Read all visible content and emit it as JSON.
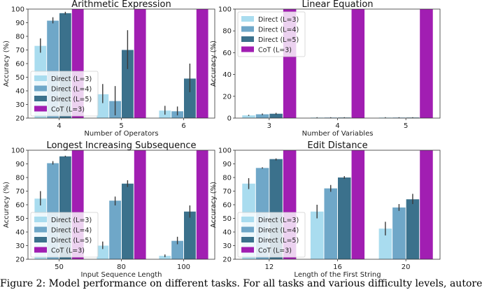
{
  "colors": {
    "L3": "#a9dcef",
    "L4": "#6fa7c8",
    "L5": "#3b718c",
    "CoT": "#a11eb2",
    "err": "#3a3a3a"
  },
  "caption": "Figure 2: Model performance on different tasks. For all tasks and various difficulty levels, autore",
  "chart_data": [
    {
      "type": "bar",
      "title": "Arithmetic Expression",
      "xlabel": "Number of Operators",
      "ylabel": "Accuracy (%)",
      "ylim": [
        20,
        100
      ],
      "yticks": [
        "20",
        "30",
        "40",
        "50",
        "60",
        "70",
        "80",
        "90",
        "100"
      ],
      "categories": [
        "4",
        "5",
        "6"
      ],
      "legend": "lower-left",
      "series": [
        {
          "name": "Direct (L=3)",
          "key": "L3",
          "values": [
            73,
            37.5,
            25.5
          ],
          "err": [
            [
              68,
              78.5
            ],
            [
              31,
              45
            ],
            [
              22.5,
              29
            ]
          ]
        },
        {
          "name": "Direct (L=4)",
          "key": "L4",
          "values": [
            91.5,
            32.5,
            25
          ],
          "err": [
            [
              89.5,
              94
            ],
            [
              22,
              43.5
            ],
            [
              22,
              28.5
            ]
          ]
        },
        {
          "name": "Direct (L=5)",
          "key": "L5",
          "values": [
            97,
            70,
            49
          ],
          "err": [
            [
              96,
              98
            ],
            [
              56,
              84.5
            ],
            [
              39,
              60
            ]
          ]
        },
        {
          "name": "CoT   (L=3)",
          "key": "CoT",
          "values": [
            100,
            100,
            100
          ],
          "err": null
        }
      ]
    },
    {
      "type": "bar",
      "title": "Linear Equation",
      "xlabel": "Number of Variables",
      "ylabel": "Accuracy (%)",
      "ylim": [
        0,
        100
      ],
      "yticks": [
        "0",
        "20",
        "40",
        "60",
        "80",
        "100"
      ],
      "categories": [
        "3",
        "4",
        "5"
      ],
      "legend": "upper-left",
      "series": [
        {
          "name": "Direct (L=3)",
          "key": "L3",
          "values": [
            2.5,
            0.5,
            0.5
          ],
          "err": [
            [
              2,
              3
            ],
            [
              0.2,
              0.8
            ],
            [
              0.2,
              0.8
            ]
          ]
        },
        {
          "name": "Direct (L=4)",
          "key": "L4",
          "values": [
            3.5,
            0.5,
            0.5
          ],
          "err": [
            [
              2.8,
              4.2
            ],
            [
              0.2,
              0.8
            ],
            [
              0.2,
              0.8
            ]
          ]
        },
        {
          "name": "Direct (L=5)",
          "key": "L5",
          "values": [
            4,
            0.5,
            0.5
          ],
          "err": [
            [
              3.2,
              4.8
            ],
            [
              0.2,
              0.8
            ],
            [
              0.2,
              0.8
            ]
          ]
        },
        {
          "name": "CoT   (L=3)",
          "key": "CoT",
          "values": [
            100,
            100,
            100
          ],
          "err": null
        }
      ]
    },
    {
      "type": "bar",
      "title": "Longest Increasing Subsequence",
      "xlabel": "Input Sequence Length",
      "ylabel": "Accuracy (%)",
      "ylim": [
        20,
        100
      ],
      "yticks": [
        "20",
        "30",
        "40",
        "50",
        "60",
        "70",
        "80",
        "90",
        "100"
      ],
      "categories": [
        "50",
        "80",
        "100"
      ],
      "legend": "lower-left",
      "series": [
        {
          "name": "Direct (L=3)",
          "key": "L3",
          "values": [
            64.5,
            30,
            22.5
          ],
          "err": [
            [
              59.5,
              70
            ],
            [
              27.5,
              33
            ],
            [
              21.5,
              23.5
            ]
          ]
        },
        {
          "name": "Direct (L=4)",
          "key": "L4",
          "values": [
            90.5,
            63,
            33.5
          ],
          "err": [
            [
              89.5,
              92
            ],
            [
              59.5,
              66
            ],
            [
              31,
              36.5
            ]
          ]
        },
        {
          "name": "Direct (L=5)",
          "key": "L5",
          "values": [
            95.5,
            75.5,
            55
          ],
          "err": [
            [
              95,
              96
            ],
            [
              73,
              78
            ],
            [
              50.5,
              59.5
            ]
          ]
        },
        {
          "name": "CoT   (L=3)",
          "key": "CoT",
          "values": [
            100,
            100,
            100
          ],
          "err": null
        }
      ]
    },
    {
      "type": "bar",
      "title": "Edit Distance",
      "xlabel": "Length of the First String",
      "ylabel": "Accuracy (%)",
      "ylim": [
        20,
        100
      ],
      "yticks": [
        "20",
        "30",
        "40",
        "50",
        "60",
        "70",
        "80",
        "90",
        "100"
      ],
      "categories": [
        "12",
        "16",
        "20"
      ],
      "legend": "lower-left",
      "series": [
        {
          "name": "Direct (L=3)",
          "key": "L3",
          "values": [
            75.5,
            55,
            42.5
          ],
          "err": [
            [
              71.5,
              79.5
            ],
            [
              50,
              60
            ],
            [
              37.5,
              47.5
            ]
          ]
        },
        {
          "name": "Direct (L=4)",
          "key": "L4",
          "values": [
            87,
            72,
            58
          ],
          "err": [
            [
              86.5,
              87.5
            ],
            [
              69.5,
              74.5
            ],
            [
              55.5,
              60.5
            ]
          ]
        },
        {
          "name": "Direct (L=5)",
          "key": "L5",
          "values": [
            93.5,
            80,
            64
          ],
          "err": [
            [
              92.5,
              94
            ],
            [
              79,
              81
            ],
            [
              60.5,
              68
            ]
          ]
        },
        {
          "name": "CoT   (L=3)",
          "key": "CoT",
          "values": [
            100,
            100,
            100
          ],
          "err": null
        }
      ]
    }
  ]
}
